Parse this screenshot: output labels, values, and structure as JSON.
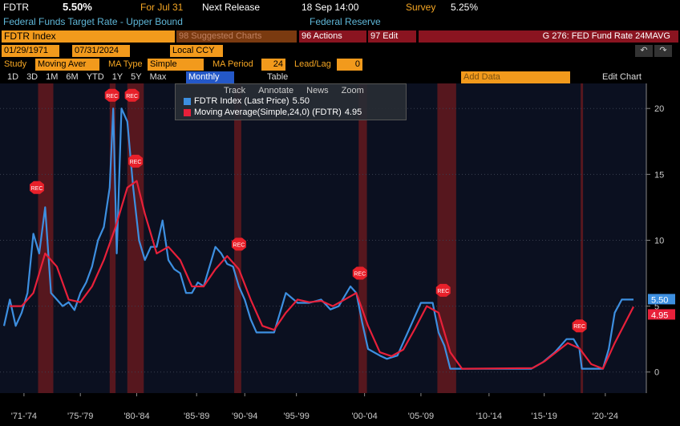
{
  "header": {
    "ticker": "FDTR",
    "last": "5.50%",
    "for_label": "For Jul 31",
    "next_label": "Next Release",
    "next_date": "18 Sep 14:00",
    "survey_label": "Survey",
    "survey": "5.25%",
    "description": "Federal Funds Target Rate - Upper Bound",
    "source": "Federal Reserve"
  },
  "toolbar": {
    "security": "FDTR Index",
    "suggested": "98 Suggested Charts",
    "actions": "96 Actions",
    "edit": "97 Edit",
    "chart_name": "G 276: FED Fund Rate 24MAVG",
    "start_date": "01/29/1971",
    "end_date": "07/31/2024",
    "currency": "Local CCY",
    "study_label": "Study",
    "study": "Moving Aver",
    "ma_type_label": "MA Type",
    "ma_type": "Simple",
    "ma_period_label": "MA Period",
    "ma_period": "24",
    "lead_lag_label": "Lead/Lag",
    "lead_lag": "0",
    "ranges": [
      "1D",
      "3D",
      "1M",
      "6M",
      "YTD",
      "1Y",
      "5Y",
      "Max"
    ],
    "frequency": "Monthly",
    "table": "Table",
    "add_data": "Add Data",
    "edit_chart": "Edit Chart",
    "tools": [
      "Track",
      "Annotate",
      "News",
      "Zoom"
    ]
  },
  "chart_data": {
    "type": "line",
    "xlim": [
      1971,
      2024.6
    ],
    "ylim": [
      -1.6,
      21.9
    ],
    "yticks": [
      0,
      5,
      10,
      15,
      20
    ],
    "grid": true,
    "xticks": [
      {
        "value": 1972.7,
        "label": "'71-'74"
      },
      {
        "value": 1977.5,
        "label": "'75-'79"
      },
      {
        "value": 1982.3,
        "label": "'80-'84"
      },
      {
        "value": 1987.4,
        "label": "'85-'89"
      },
      {
        "value": 1991.5,
        "label": "'90-'94"
      },
      {
        "value": 1995.9,
        "label": "'95-'99"
      },
      {
        "value": 2001.7,
        "label": "'00-'04"
      },
      {
        "value": 2006.5,
        "label": "'05-'09"
      },
      {
        "value": 2012.3,
        "label": "'10-'14"
      },
      {
        "value": 2017.0,
        "label": "'15-'19"
      },
      {
        "value": 2022.2,
        "label": "'20-'24"
      }
    ],
    "shaded_periods": [
      [
        1973.9,
        1975.2
      ],
      [
        1980.0,
        1980.5
      ],
      [
        1981.5,
        1982.9
      ],
      [
        1990.6,
        1991.2
      ],
      [
        2001.2,
        2001.9
      ],
      [
        2007.9,
        2009.5
      ],
      [
        2020.1,
        2020.3
      ]
    ],
    "annotations": [
      {
        "x": 1973.8,
        "y": 14,
        "label": "REC"
      },
      {
        "x": 1980.2,
        "y": 21,
        "label": "REC"
      },
      {
        "x": 1981.9,
        "y": 21,
        "label": "REC"
      },
      {
        "x": 1982.2,
        "y": 16,
        "label": "REC"
      },
      {
        "x": 1991.0,
        "y": 9.7,
        "label": "REC"
      },
      {
        "x": 2001.3,
        "y": 7.5,
        "label": "REC"
      },
      {
        "x": 2008.4,
        "y": 6.2,
        "label": "REC"
      },
      {
        "x": 2020.0,
        "y": 3.5,
        "label": "REC"
      }
    ],
    "series": [
      {
        "name": "FDTR Index (Last Price)",
        "color": "#3d8fe0",
        "last_label": "5.50",
        "x": [
          1971.0,
          1971.5,
          1972.0,
          1972.5,
          1973.0,
          1973.5,
          1974.0,
          1974.5,
          1975.0,
          1975.5,
          1976.0,
          1976.5,
          1977.0,
          1977.5,
          1978.0,
          1978.5,
          1979.0,
          1979.5,
          1980.0,
          1980.3,
          1980.6,
          1981.0,
          1981.5,
          1982.0,
          1982.5,
          1983.0,
          1983.5,
          1984.0,
          1984.5,
          1985.0,
          1985.5,
          1986.0,
          1986.5,
          1987.0,
          1987.5,
          1988.0,
          1988.5,
          1989.0,
          1989.5,
          1990.0,
          1990.5,
          1991.0,
          1991.5,
          1992.0,
          1992.5,
          1993.0,
          1994.0,
          1994.5,
          1995.0,
          1996.0,
          1997.0,
          1998.0,
          1998.8,
          1999.5,
          2000.5,
          2001.0,
          2001.5,
          2002.0,
          2003.0,
          2003.6,
          2004.5,
          2005.0,
          2006.0,
          2006.5,
          2007.5,
          2008.0,
          2008.5,
          2009.0,
          2015.9,
          2016.9,
          2017.9,
          2018.9,
          2019.5,
          2020.0,
          2020.2,
          2022.0,
          2022.5,
          2023.0,
          2023.6,
          2024.6
        ],
        "values": [
          3.5,
          5.5,
          3.5,
          4.5,
          6,
          10.5,
          9,
          12.5,
          6,
          5.5,
          5,
          5.3,
          4.7,
          6,
          6.8,
          8,
          10,
          11,
          14,
          20,
          9,
          20,
          19,
          14,
          10,
          8.5,
          9.5,
          9.5,
          11.5,
          8.5,
          7.8,
          7.5,
          6,
          6,
          6.8,
          6.5,
          8,
          9.5,
          9,
          8.2,
          8,
          6.5,
          5.5,
          4,
          3,
          3,
          3,
          4.5,
          6,
          5.25,
          5.25,
          5.5,
          4.75,
          5,
          6.5,
          6,
          3.75,
          1.75,
          1.25,
          1,
          1.25,
          2.25,
          4.25,
          5.25,
          5.25,
          3,
          2,
          0.25,
          0.25,
          0.75,
          1.5,
          2.5,
          2.5,
          1.75,
          0.25,
          0.25,
          1.75,
          4.5,
          5.5,
          5.5
        ]
      },
      {
        "name": "Moving Average(Simple,24,0) (FDTR)",
        "color": "#e8203a",
        "last_label": "4.95",
        "x": [
          1971.5,
          1972.5,
          1973.5,
          1974.5,
          1975.5,
          1976.5,
          1977.5,
          1978.5,
          1979.5,
          1980.5,
          1981.5,
          1982.3,
          1983,
          1984,
          1985,
          1986,
          1987,
          1988,
          1989,
          1990,
          1991,
          1992,
          1993,
          1994,
          1995,
          1996,
          1997,
          1998,
          1999,
          2000,
          2001,
          2002,
          2003,
          2004,
          2005,
          2006,
          2007,
          2008,
          2009,
          2010,
          2016,
          2017,
          2018,
          2019,
          2020,
          2021,
          2022,
          2023,
          2024.6
        ],
        "values": [
          5,
          5,
          6,
          9,
          8,
          5.5,
          5.3,
          6.5,
          8.5,
          11,
          14,
          14.5,
          12,
          9,
          9.5,
          8.5,
          6.5,
          6.5,
          7.8,
          8.8,
          7.8,
          5.5,
          3.5,
          3.2,
          4.5,
          5.5,
          5.3,
          5.4,
          5,
          5.5,
          6,
          3.5,
          1.5,
          1.2,
          1.7,
          3.3,
          5,
          4.5,
          1.5,
          0.25,
          0.3,
          0.8,
          1.5,
          2.2,
          1.8,
          0.6,
          0.25,
          2.2,
          4.95
        ]
      }
    ]
  }
}
